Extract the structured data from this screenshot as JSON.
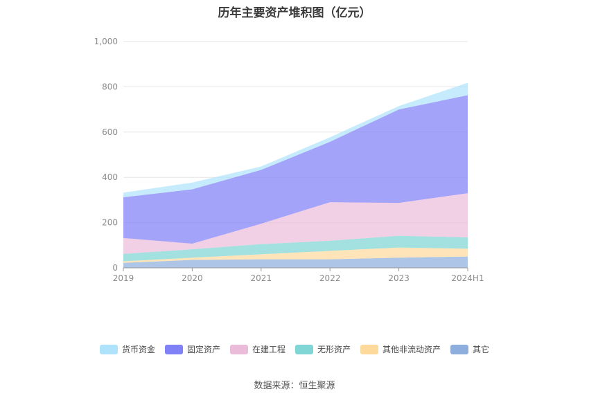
{
  "chart_data": {
    "type": "area",
    "stacked": true,
    "title": "历年主要资产堆积图（亿元）",
    "x": [
      "2019",
      "2020",
      "2021",
      "2022",
      "2023",
      "2024H1"
    ],
    "y_ticks": [
      "0",
      "200",
      "400",
      "600",
      "800",
      "1,000"
    ],
    "ylim": [
      0,
      1000
    ],
    "grid": true,
    "legend_position": "bottom",
    "series": [
      {
        "name": "其它",
        "color": "#8eaedd",
        "values": [
          22,
          35,
          38,
          38,
          45,
          50
        ]
      },
      {
        "name": "其他非流动资产",
        "color": "#fdd99c",
        "values": [
          7,
          10,
          22,
          37,
          45,
          35
        ]
      },
      {
        "name": "无形资产",
        "color": "#7fd6d4",
        "values": [
          33,
          37,
          45,
          45,
          52,
          50
        ]
      },
      {
        "name": "在建工程",
        "color": "#ebbcd9",
        "values": [
          70,
          25,
          90,
          170,
          145,
          195
        ]
      },
      {
        "name": "固定资产",
        "color": "#8080f7",
        "values": [
          180,
          240,
          238,
          267,
          413,
          433
        ]
      },
      {
        "name": "货币资金",
        "color": "#aee3fb",
        "values": [
          20,
          30,
          15,
          20,
          15,
          55
        ]
      }
    ],
    "legend_order": [
      "货币资金",
      "固定资产",
      "在建工程",
      "无形资产",
      "其他非流动资产",
      "其它"
    ]
  },
  "footer": {
    "source": "数据来源：恒生聚源"
  }
}
